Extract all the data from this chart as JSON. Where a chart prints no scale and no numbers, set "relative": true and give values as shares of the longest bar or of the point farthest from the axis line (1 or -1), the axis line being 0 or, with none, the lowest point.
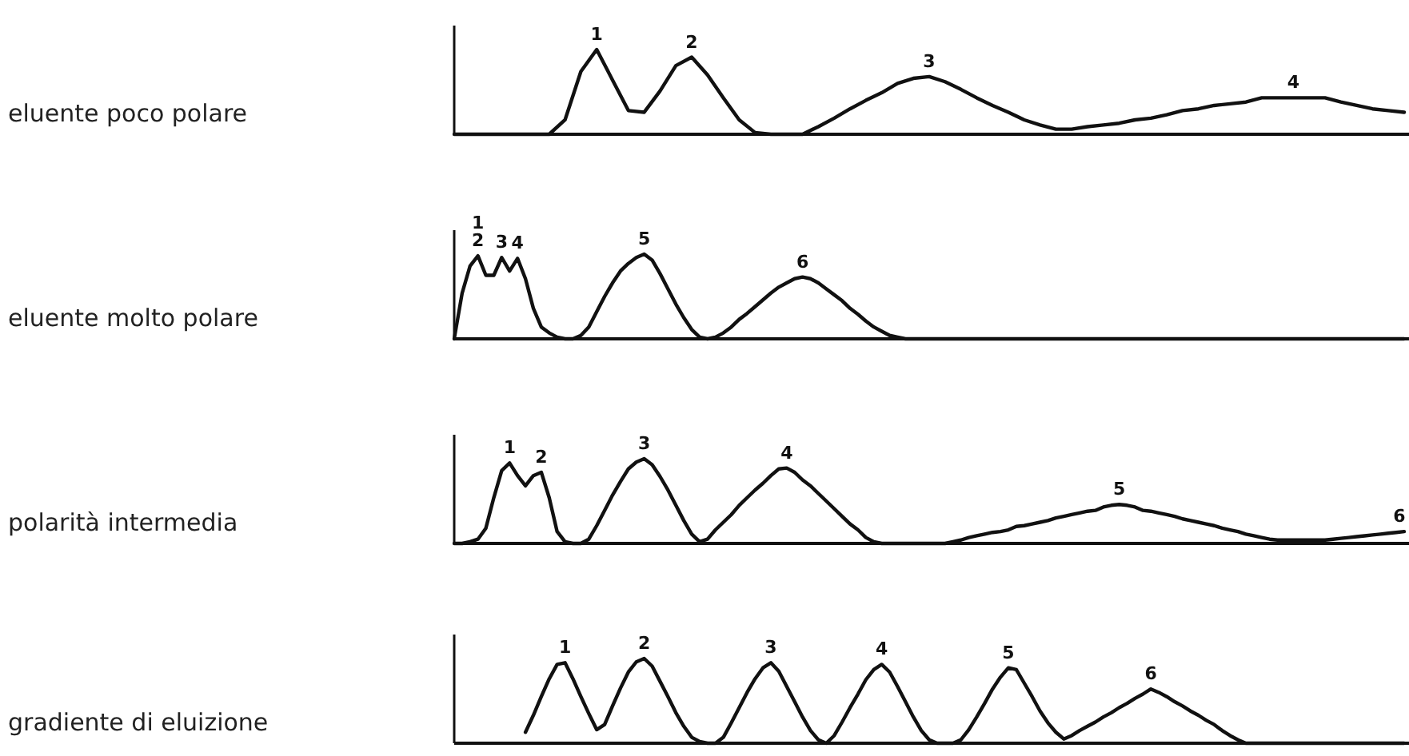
{
  "chart_data": [
    {
      "type": "line",
      "ylabel": "eluente poco polare",
      "relative": true,
      "color": "#111111",
      "annotations": [
        "1",
        "2",
        "3",
        "4"
      ],
      "categories": [
        null,
        null,
        null,
        null,
        null,
        null,
        null,
        null,
        null,
        null,
        null,
        null,
        null,
        null,
        null,
        null,
        null,
        null,
        null,
        null,
        null,
        null,
        null,
        null,
        null,
        null,
        null,
        null,
        null,
        null,
        null,
        null,
        null,
        null,
        null,
        null,
        null,
        null,
        null,
        null,
        null,
        null,
        null,
        null,
        null,
        null,
        null,
        null,
        null,
        null,
        null,
        null,
        null,
        null,
        null,
        null,
        null,
        null,
        null,
        null,
        null
      ],
      "values": [
        0,
        0,
        0,
        0,
        0,
        0,
        0,
        0.17,
        0.74,
        1,
        0.64,
        0.28,
        0.26,
        0.51,
        0.81,
        0.91,
        0.7,
        0.43,
        0.17,
        0.02,
        0,
        0,
        0,
        0.09,
        0.19,
        0.3,
        0.4,
        0.49,
        0.6,
        0.66,
        0.68,
        0.62,
        0.53,
        0.43,
        0.34,
        0.26,
        0.17,
        0.11,
        0.06,
        0.06,
        0.09,
        0.11,
        0.13,
        0.17,
        0.19,
        0.23,
        0.28,
        0.3,
        0.34,
        0.36,
        0.38,
        0.43,
        0.43,
        0.43,
        0.43,
        0.43,
        0.38,
        0.34,
        0.3,
        0.28,
        0.26
      ]
    },
    {
      "type": "line",
      "ylabel": "eluente molto polare",
      "relative": true,
      "color": "#111111",
      "annotations": [
        "1",
        "2",
        "3",
        "4",
        "5",
        "6"
      ],
      "categories": [
        null,
        null,
        null,
        null,
        null,
        null,
        null,
        null,
        null,
        null,
        null,
        null,
        null,
        null,
        null,
        null,
        null,
        null,
        null,
        null,
        null,
        null,
        null,
        null,
        null,
        null,
        null,
        null,
        null,
        null,
        null,
        null,
        null,
        null,
        null,
        null,
        null,
        null,
        null,
        null,
        null,
        null,
        null,
        null,
        null,
        null,
        null,
        null,
        null,
        null,
        null,
        null,
        null,
        null,
        null,
        null,
        null,
        null,
        null,
        null,
        null,
        null,
        null,
        null,
        null,
        null,
        null,
        null,
        null,
        null,
        null,
        null,
        null,
        null,
        null,
        null,
        null,
        null,
        null,
        null,
        null,
        null,
        null,
        null,
        null,
        null,
        null,
        null,
        null,
        null,
        null,
        null,
        null,
        null,
        null,
        null,
        null,
        null,
        null,
        null,
        null,
        null,
        null,
        null,
        null,
        null,
        null,
        null,
        null,
        null,
        null,
        null,
        null,
        null,
        null,
        null,
        null,
        null,
        null,
        null,
        null
      ],
      "values": [
        0,
        0.54,
        0.86,
        0.98,
        0.75,
        0.75,
        0.96,
        0.8,
        0.95,
        0.71,
        0.36,
        0.14,
        0.07,
        0.02,
        0,
        0,
        0.04,
        0.14,
        0.32,
        0.5,
        0.66,
        0.8,
        0.89,
        0.96,
        1,
        0.93,
        0.77,
        0.59,
        0.41,
        0.25,
        0.11,
        0.02,
        0,
        0.02,
        0.07,
        0.14,
        0.23,
        0.3,
        0.38,
        0.46,
        0.54,
        0.61,
        0.66,
        0.71,
        0.73,
        0.71,
        0.66,
        0.59,
        0.52,
        0.45,
        0.36,
        0.29,
        0.21,
        0.14,
        0.09,
        0.04,
        0.02,
        0,
        0,
        0,
        0,
        0,
        0,
        0,
        0,
        0,
        0,
        0,
        0,
        0,
        0,
        0,
        0,
        0,
        0,
        0,
        0,
        0,
        0,
        0,
        0,
        0,
        0,
        0,
        0,
        0,
        0,
        0,
        0,
        0,
        0,
        0,
        0,
        0,
        0,
        0,
        0,
        0,
        0,
        0,
        0,
        0,
        0,
        0,
        0,
        0,
        0,
        0,
        0,
        0,
        0,
        0,
        0,
        0,
        0,
        0,
        0,
        0,
        0,
        0,
        0
      ]
    },
    {
      "type": "line",
      "ylabel": "polarità intermedia",
      "relative": true,
      "color": "#111111",
      "annotations": [
        "1",
        "2",
        "3",
        "4",
        "5",
        "6"
      ],
      "categories": [
        null,
        null,
        null,
        null,
        null,
        null,
        null,
        null,
        null,
        null,
        null,
        null,
        null,
        null,
        null,
        null,
        null,
        null,
        null,
        null,
        null,
        null,
        null,
        null,
        null,
        null,
        null,
        null,
        null,
        null,
        null,
        null,
        null,
        null,
        null,
        null,
        null,
        null,
        null,
        null,
        null,
        null,
        null,
        null,
        null,
        null,
        null,
        null,
        null,
        null,
        null,
        null,
        null,
        null,
        null,
        null,
        null,
        null,
        null,
        null,
        null,
        null,
        null,
        null,
        null,
        null,
        null,
        null,
        null,
        null,
        null,
        null,
        null,
        null,
        null,
        null,
        null,
        null,
        null,
        null,
        null,
        null,
        null,
        null,
        null,
        null,
        null,
        null,
        null,
        null,
        null,
        null,
        null,
        null,
        null,
        null,
        null,
        null,
        null,
        null,
        null,
        null,
        null,
        null,
        null,
        null,
        null,
        null,
        null,
        null,
        null,
        null,
        null,
        null,
        null,
        null,
        null,
        null,
        null,
        null,
        null
      ],
      "values": [
        0,
        0,
        0.02,
        0.05,
        0.18,
        0.54,
        0.86,
        0.95,
        0.8,
        0.68,
        0.8,
        0.84,
        0.54,
        0.14,
        0.02,
        0,
        0,
        0.05,
        0.21,
        0.39,
        0.57,
        0.73,
        0.88,
        0.96,
        1,
        0.93,
        0.79,
        0.63,
        0.45,
        0.27,
        0.11,
        0.02,
        0.05,
        0.16,
        0.25,
        0.34,
        0.45,
        0.54,
        0.63,
        0.71,
        0.8,
        0.88,
        0.89,
        0.84,
        0.75,
        0.68,
        0.59,
        0.5,
        0.41,
        0.32,
        0.23,
        0.16,
        0.07,
        0.02,
        0,
        0,
        0,
        0,
        0,
        0,
        0,
        0,
        0,
        0.02,
        0.04,
        0.07,
        0.09,
        0.11,
        0.13,
        0.14,
        0.16,
        0.2,
        0.21,
        0.23,
        0.25,
        0.27,
        0.3,
        0.32,
        0.34,
        0.36,
        0.38,
        0.39,
        0.43,
        0.45,
        0.46,
        0.45,
        0.43,
        0.39,
        0.38,
        0.36,
        0.34,
        0.32,
        0.29,
        0.27,
        0.25,
        0.23,
        0.21,
        0.18,
        0.16,
        0.14,
        0.11,
        0.09,
        0.07,
        0.05,
        0.04,
        0.04,
        0.04,
        0.04,
        0.04,
        0.04,
        0.04,
        0.05,
        0.06,
        0.07,
        0.08,
        0.09,
        0.1,
        0.11,
        0.12,
        0.13,
        0.14
      ]
    },
    {
      "type": "line",
      "ylabel": "gradiente di eluizione",
      "relative": true,
      "color": "#111111",
      "annotations": [
        "1",
        "2",
        "3",
        "4",
        "5",
        "6"
      ],
      "categories": [
        null,
        null,
        null,
        null,
        null,
        null,
        null,
        null,
        null,
        null,
        null,
        null,
        null,
        null,
        null,
        null,
        null,
        null,
        null,
        null,
        null,
        null,
        null,
        null,
        null,
        null,
        null,
        null,
        null,
        null,
        null,
        null,
        null,
        null,
        null,
        null,
        null,
        null,
        null,
        null,
        null,
        null,
        null,
        null,
        null,
        null,
        null,
        null,
        null,
        null,
        null,
        null,
        null,
        null,
        null,
        null,
        null,
        null,
        null,
        null,
        null,
        null,
        null,
        null,
        null,
        null,
        null,
        null,
        null,
        null,
        null,
        null,
        null,
        null,
        null,
        null,
        null,
        null,
        null,
        null,
        null,
        null,
        null,
        null,
        null,
        null,
        null,
        null,
        null,
        null,
        null,
        null,
        null,
        null,
        null,
        null,
        null,
        null,
        null,
        null,
        null,
        null,
        null,
        null,
        null,
        null,
        null,
        null,
        null,
        null,
        null,
        null,
        null,
        null,
        null,
        null,
        null,
        null,
        null,
        null,
        null
      ],
      "values": [
        null,
        null,
        null,
        null,
        null,
        null,
        null,
        null,
        null,
        0.13,
        0.33,
        0.55,
        0.76,
        0.93,
        0.95,
        0.76,
        0.55,
        0.35,
        0.16,
        0.22,
        0.44,
        0.65,
        0.84,
        0.96,
        1,
        0.91,
        0.73,
        0.55,
        0.36,
        0.2,
        0.07,
        0.02,
        0,
        0,
        0.07,
        0.24,
        0.42,
        0.6,
        0.76,
        0.89,
        0.95,
        0.85,
        0.67,
        0.49,
        0.31,
        0.15,
        0.04,
        0,
        0.09,
        0.25,
        0.42,
        0.58,
        0.75,
        0.87,
        0.93,
        0.84,
        0.67,
        0.49,
        0.31,
        0.15,
        0.04,
        0,
        0,
        0,
        0.04,
        0.16,
        0.31,
        0.47,
        0.64,
        0.78,
        0.89,
        0.87,
        0.71,
        0.55,
        0.38,
        0.24,
        0.13,
        0.05,
        0.09,
        0.15,
        0.2,
        0.25,
        0.31,
        0.36,
        0.42,
        0.47,
        0.53,
        0.58,
        0.64,
        0.6,
        0.55,
        0.49,
        0.44,
        0.38,
        0.33,
        0.27,
        0.22,
        0.15,
        0.09,
        0.04,
        0,
        0,
        0,
        0,
        0,
        0,
        0,
        0,
        0,
        0,
        0,
        0,
        0,
        0,
        0,
        0,
        0,
        0,
        0,
        0,
        0
      ]
    }
  ]
}
